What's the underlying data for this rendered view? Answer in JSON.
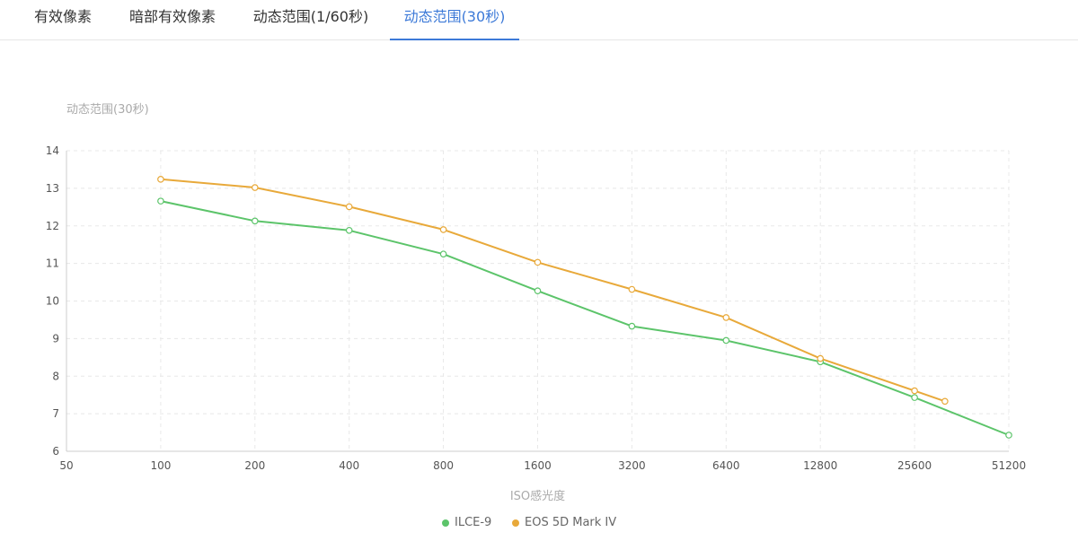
{
  "tabs": [
    {
      "label": "有效像素",
      "active": false
    },
    {
      "label": "暗部有效像素",
      "active": false
    },
    {
      "label": "动态范围(1/60秒)",
      "active": false
    },
    {
      "label": "动态范围(30秒)",
      "active": true
    }
  ],
  "colors": {
    "accent": "#3d7ad8",
    "series_1": "#5cc46a",
    "series_2": "#e8a93a",
    "axis_text": "#555555",
    "axis_title": "#aaaaaa",
    "grid": "#e8e8e8"
  },
  "chart_data": {
    "type": "line",
    "title": "",
    "ylabel": "动态范围(30秒)",
    "xlabel": "ISO感光度",
    "x_scale": "log2",
    "x_ticks": [
      50,
      100,
      200,
      400,
      800,
      1600,
      3200,
      6400,
      12800,
      25600,
      51200
    ],
    "x_tick_labels": [
      "50",
      "100",
      "200",
      "400",
      "800",
      "1600",
      "3200",
      "6400",
      "12800",
      "25600",
      "51200"
    ],
    "xlim": [
      50,
      51200
    ],
    "ylim": [
      6,
      14
    ],
    "y_ticks": [
      6,
      7,
      8,
      9,
      10,
      11,
      12,
      13,
      14
    ],
    "y_tick_labels": [
      "6",
      "7",
      "8",
      "9",
      "10",
      "11",
      "12",
      "13",
      "14"
    ],
    "grid": true,
    "legend_position": "bottom-center",
    "series": [
      {
        "name": "ILCE-9",
        "color": "#5cc46a",
        "x": [
          100,
          200,
          400,
          800,
          1600,
          3200,
          6400,
          12800,
          25600,
          51200
        ],
        "values": [
          12.66,
          12.13,
          11.88,
          11.25,
          10.27,
          9.33,
          8.95,
          8.38,
          7.43,
          6.43
        ]
      },
      {
        "name": "EOS 5D Mark IV",
        "color": "#e8a93a",
        "x": [
          100,
          200,
          400,
          800,
          1600,
          3200,
          6400,
          12800,
          25600,
          32000
        ],
        "values": [
          13.24,
          13.02,
          12.51,
          11.9,
          11.03,
          10.31,
          9.56,
          8.47,
          7.61,
          7.33
        ]
      }
    ]
  }
}
